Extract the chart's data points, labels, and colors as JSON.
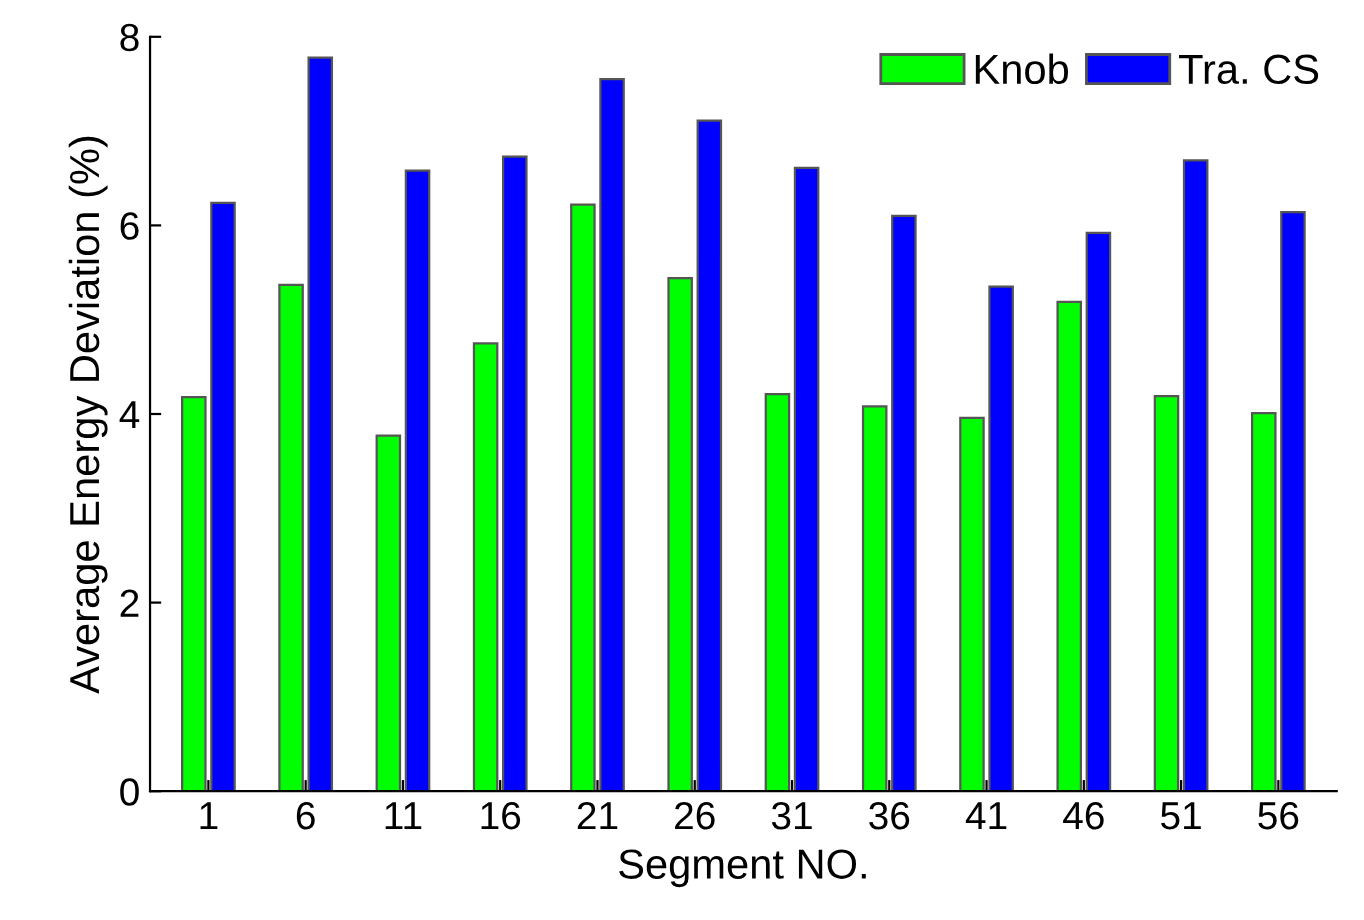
{
  "chart_data": {
    "type": "bar",
    "xlabel": "Segment NO.",
    "ylabel": "Average Energy Deviation (%)",
    "categories": [
      "1",
      "6",
      "11",
      "16",
      "21",
      "26",
      "31",
      "36",
      "41",
      "46",
      "51",
      "56"
    ],
    "series": [
      {
        "name": "Knob",
        "color": "#00ff00",
        "values": [
          4.18,
          5.37,
          3.77,
          4.75,
          6.22,
          5.44,
          4.21,
          4.08,
          3.96,
          5.19,
          4.19,
          4.01
        ]
      },
      {
        "name": "Tra. CS",
        "color": "#0000ff",
        "values": [
          6.24,
          7.78,
          6.58,
          6.73,
          7.55,
          7.11,
          6.61,
          6.1,
          5.35,
          5.92,
          6.69,
          6.14
        ]
      }
    ],
    "ylim": [
      0,
      8
    ],
    "yticks": [
      0,
      2,
      4,
      6,
      8
    ],
    "grid": false,
    "legend": "top right"
  }
}
